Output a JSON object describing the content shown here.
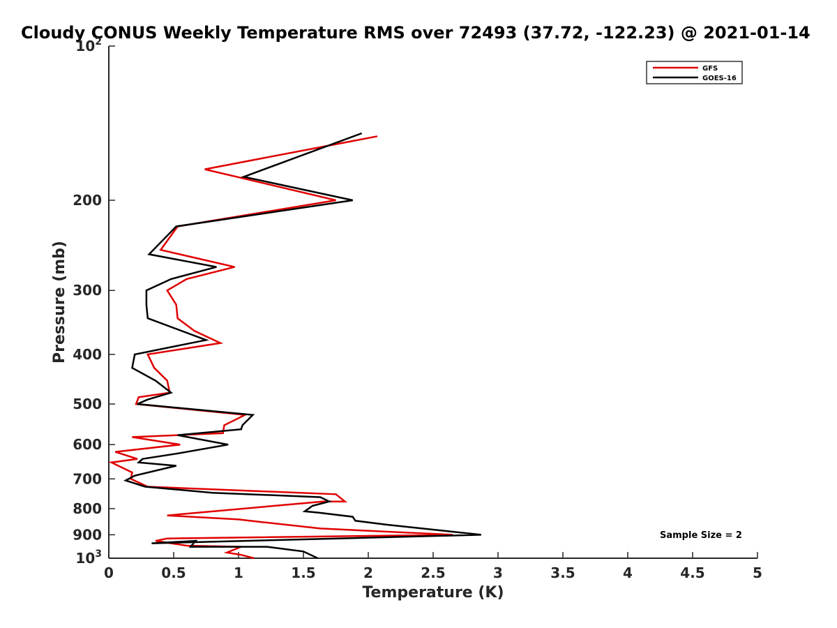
{
  "chart_data": {
    "type": "line",
    "title": "Cloudy CONUS Weekly Temperature RMS over 72493 (37.72, -122.23) @ 2021-01-14",
    "xlabel": "Temperature (K)",
    "ylabel": "Pressure (mb)",
    "xlim": [
      0,
      5
    ],
    "ylim": [
      100,
      1000
    ],
    "y_scale": "log",
    "y_reversed": true,
    "x_ticks": [
      "0",
      "0.5",
      "1",
      "1.5",
      "2",
      "2.5",
      "3",
      "3.5",
      "4",
      "4.5",
      "5"
    ],
    "y_ticks": [
      {
        "value": 200,
        "label": "200"
      },
      {
        "value": 300,
        "label": "300"
      },
      {
        "value": 400,
        "label": "400"
      },
      {
        "value": 500,
        "label": "500"
      },
      {
        "value": 600,
        "label": "600"
      },
      {
        "value": 700,
        "label": "700"
      },
      {
        "value": 800,
        "label": "800"
      },
      {
        "value": 900,
        "label": "900"
      }
    ],
    "y_tick_top": {
      "base": "10",
      "exp": "2"
    },
    "y_tick_bottom": {
      "base": "10",
      "exp": "3"
    },
    "legend_position": "top-right",
    "grid": false,
    "series": [
      {
        "name": "GFS",
        "color": "#e00000",
        "points": [
          [
            2.07,
            150
          ],
          [
            0.74,
            174
          ],
          [
            1.75,
            200
          ],
          [
            0.53,
            225
          ],
          [
            0.4,
            250
          ],
          [
            0.97,
            270
          ],
          [
            0.6,
            285
          ],
          [
            0.45,
            300
          ],
          [
            0.52,
            320
          ],
          [
            0.53,
            340
          ],
          [
            0.66,
            360
          ],
          [
            0.86,
            380
          ],
          [
            0.3,
            400
          ],
          [
            0.35,
            425
          ],
          [
            0.45,
            450
          ],
          [
            0.47,
            475
          ],
          [
            0.23,
            485
          ],
          [
            0.21,
            500
          ],
          [
            1.05,
            525
          ],
          [
            0.89,
            550
          ],
          [
            0.88,
            570
          ],
          [
            0.18,
            580
          ],
          [
            0.55,
            600
          ],
          [
            0.05,
            620
          ],
          [
            0.22,
            640
          ],
          [
            0.02,
            650
          ],
          [
            0.18,
            680
          ],
          [
            0.17,
            700
          ],
          [
            0.3,
            725
          ],
          [
            1.75,
            750
          ],
          [
            1.82,
            775
          ],
          [
            1.65,
            775
          ],
          [
            0.45,
            825
          ],
          [
            1.0,
            840
          ],
          [
            1.18,
            850
          ],
          [
            1.63,
            875
          ],
          [
            2.65,
            900
          ],
          [
            0.45,
            915
          ],
          [
            0.36,
            925
          ],
          [
            0.6,
            945
          ],
          [
            1.02,
            950
          ],
          [
            0.91,
            975
          ],
          [
            1.02,
            985
          ],
          [
            1.12,
            1000
          ]
        ]
      },
      {
        "name": "GOES-16",
        "color": "#000000",
        "points": [
          [
            1.95,
            148
          ],
          [
            1.04,
            180
          ],
          [
            1.88,
            200
          ],
          [
            0.52,
            225
          ],
          [
            0.31,
            255
          ],
          [
            0.83,
            270
          ],
          [
            0.48,
            285
          ],
          [
            0.29,
            300
          ],
          [
            0.29,
            320
          ],
          [
            0.3,
            340
          ],
          [
            0.75,
            375
          ],
          [
            0.2,
            400
          ],
          [
            0.18,
            425
          ],
          [
            0.36,
            450
          ],
          [
            0.48,
            475
          ],
          [
            0.3,
            490
          ],
          [
            0.22,
            500
          ],
          [
            1.11,
            525
          ],
          [
            1.03,
            550
          ],
          [
            1.02,
            560
          ],
          [
            0.53,
            575
          ],
          [
            0.92,
            600
          ],
          [
            0.52,
            625
          ],
          [
            0.26,
            640
          ],
          [
            0.23,
            650
          ],
          [
            0.52,
            660
          ],
          [
            0.2,
            690
          ],
          [
            0.13,
            705
          ],
          [
            0.28,
            725
          ],
          [
            0.8,
            745
          ],
          [
            1.63,
            760
          ],
          [
            1.7,
            775
          ],
          [
            1.57,
            790
          ],
          [
            1.51,
            810
          ],
          [
            1.62,
            815
          ],
          [
            1.88,
            830
          ],
          [
            1.9,
            845
          ],
          [
            2.14,
            860
          ],
          [
            2.87,
            900
          ],
          [
            0.33,
            935
          ],
          [
            0.67,
            925
          ],
          [
            0.63,
            950
          ],
          [
            1.22,
            950
          ],
          [
            1.5,
            970
          ],
          [
            1.61,
            1000
          ]
        ]
      }
    ],
    "annotation": "Sample Size = 2"
  }
}
